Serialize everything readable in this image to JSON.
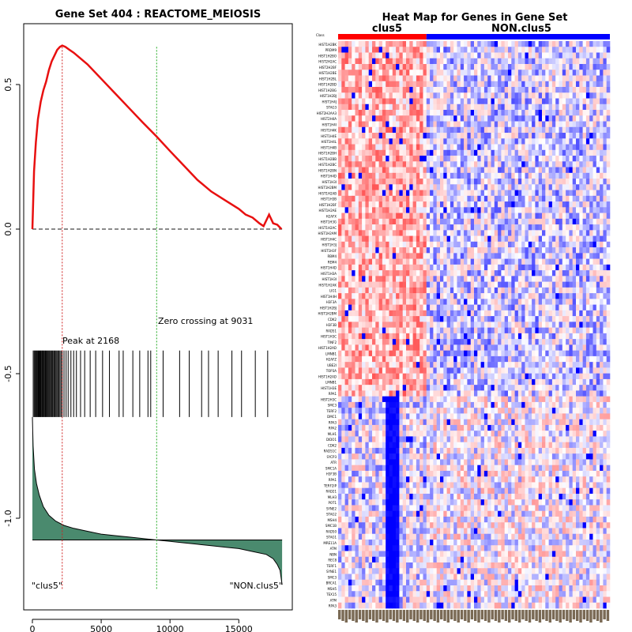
{
  "colors": {
    "es_line": "#e81010",
    "zero_line": "#444444",
    "peak_line": "#d02020",
    "cross_line": "#22aa22",
    "ranked_fill": "#4a8a6e",
    "clus5_bar": "#ff0000",
    "non_bar": "#0000ff"
  },
  "chart_data": [
    {
      "type": "line",
      "title": "Gene Set  404 : REACTOME_MEIOSIS",
      "xlim": [
        0,
        18200
      ],
      "ylim": [
        -1.25,
        0.7
      ],
      "x_ticks": [
        0,
        5000,
        10000,
        15000
      ],
      "x_tick_labels": [
        "0",
        "5000",
        "10000",
        "15000"
      ],
      "y_ticks": [
        0.5,
        0.0,
        -0.5,
        -1.0
      ],
      "y_tick_labels": [
        "0.5",
        "0.0",
        "-0.5",
        "-1.0"
      ],
      "peak_x": 2168,
      "zero_crossing_x": 9031,
      "peak_label": "Peak at 2168",
      "zero_crossing_label": "Zero crossing at 9031",
      "left_label": "\"clus5\"",
      "right_label": "\"NON.clus5\"",
      "enrichment_score": {
        "x": [
          0,
          120,
          250,
          400,
          600,
          800,
          1000,
          1200,
          1400,
          1600,
          1800,
          2000,
          2168,
          2400,
          2700,
          3000,
          3500,
          4000,
          5000,
          6000,
          7000,
          8000,
          9031,
          10000,
          11000,
          12000,
          13000,
          14000,
          15000,
          15500,
          16000,
          16500,
          16800,
          17200,
          17500,
          17800,
          18100
        ],
        "y": [
          0.0,
          0.2,
          0.3,
          0.38,
          0.44,
          0.48,
          0.51,
          0.55,
          0.58,
          0.6,
          0.62,
          0.63,
          0.635,
          0.63,
          0.62,
          0.61,
          0.59,
          0.57,
          0.52,
          0.47,
          0.42,
          0.37,
          0.32,
          0.27,
          0.22,
          0.17,
          0.13,
          0.1,
          0.07,
          0.05,
          0.04,
          0.02,
          0.01,
          0.05,
          0.02,
          0.015,
          0.0
        ]
      },
      "hit_positions": [
        60,
        130,
        190,
        240,
        300,
        350,
        410,
        460,
        520,
        570,
        620,
        680,
        730,
        780,
        840,
        900,
        950,
        1010,
        1070,
        1130,
        1190,
        1250,
        1310,
        1380,
        1440,
        1500,
        1570,
        1640,
        1710,
        1780,
        1850,
        1920,
        2000,
        2080,
        2168,
        2300,
        2450,
        2600,
        2800,
        3000,
        3200,
        3500,
        3800,
        4200,
        4600,
        5100,
        5600,
        6300,
        6600,
        7300,
        7800,
        8400,
        8600,
        9500,
        10700,
        11400,
        12300,
        12800,
        13500,
        14500,
        15200,
        16200,
        17100
      ],
      "ranked_metric": {
        "x": [
          0,
          50,
          150,
          300,
          500,
          800,
          1200,
          1700,
          2300,
          3000,
          4000,
          5000,
          6000,
          7000,
          8000,
          9000,
          10000,
          11000,
          12000,
          13000,
          14000,
          15000,
          16000,
          17000,
          17500,
          17800,
          18000,
          18150
        ],
        "y": [
          -0.65,
          -0.75,
          -0.83,
          -0.88,
          -0.92,
          -0.96,
          -0.99,
          -1.01,
          -1.025,
          -1.035,
          -1.045,
          -1.055,
          -1.06,
          -1.065,
          -1.07,
          -1.075,
          -1.08,
          -1.085,
          -1.09,
          -1.095,
          -1.1,
          -1.105,
          -1.115,
          -1.125,
          -1.14,
          -1.16,
          -1.18,
          -1.23
        ]
      },
      "ranked_baseline": -1.075
    },
    {
      "type": "heatmap",
      "title": "Heat Map for Genes in Gene Set",
      "group_labels": [
        "clus5",
        "NON.clus5"
      ],
      "group_sizes": [
        26,
        54
      ],
      "top_label": "Class",
      "genes": [
        "HIST1H2BK",
        "PRDM9",
        "HIST1H2BO",
        "HIST2H2AC",
        "HIST2H2BF",
        "HIST1H2BE",
        "HIST1H2BL",
        "HIST1H2BD",
        "HIST1H2BG",
        "HIST1H2BJ",
        "HIST1H4J",
        "STAG3",
        "HIST2H2AA3",
        "HIST2H4A",
        "HIST1H4I",
        "HIST1H4K",
        "HIST1H4E",
        "HIST1H4L",
        "HIST1H4B",
        "HIST1H2BH",
        "HIST1H2BB",
        "HIST1H2BC",
        "HIST1H2BN",
        "HIST1H4D",
        "HIST1H3I",
        "HIST1H2BM",
        "HIST1H2AB",
        "HIST1H3B",
        "HIST1H2BF",
        "HIST1H2AE",
        "H2AFX",
        "HIST1H3G",
        "HIST1H2AC",
        "HIST1H2AM",
        "HIST1H4C",
        "HIST1H3J",
        "HIST1H3F",
        "RBM4",
        "REM4",
        "HIST1H4D",
        "HIST1H3A",
        "HIST1H3I",
        "HIST1H2AK",
        "LIG1",
        "HIST1H4H",
        "H3F3A",
        "HIST1H2BJ",
        "HIST1H2BM",
        "CDK2",
        "H3F3B",
        "RAD51",
        "HIST1H3C",
        "TINF2",
        "HIST1H2AD",
        "LMNB1",
        "H2AFZ",
        "UBE2I",
        "TOP3A",
        "HIST1H2AD",
        "LMNB1",
        "HIST1H3E",
        "RPA1",
        "HIST2H3C",
        "SMC3",
        "TERF2",
        "DMC1",
        "RPA3",
        "RPA2",
        "MLH1",
        "DIDO1",
        "CDK2",
        "RAD51C",
        "SYCP3",
        "ATR",
        "SMC1A",
        "H3F3B",
        "RPA1",
        "TERF2IP",
        "RAD21",
        "MLH3",
        "POT1",
        "SYNE2",
        "STAG2",
        "MSH4",
        "SMC1B",
        "RAD50",
        "STAG1",
        "MRE11A",
        "ATM",
        "NBN",
        "REC8",
        "TERF1",
        "SYNE1",
        "SMC3",
        "BRCA1",
        "MSH5",
        "TEX15",
        "ATM",
        "RPA3"
      ],
      "seed": 404
    }
  ]
}
